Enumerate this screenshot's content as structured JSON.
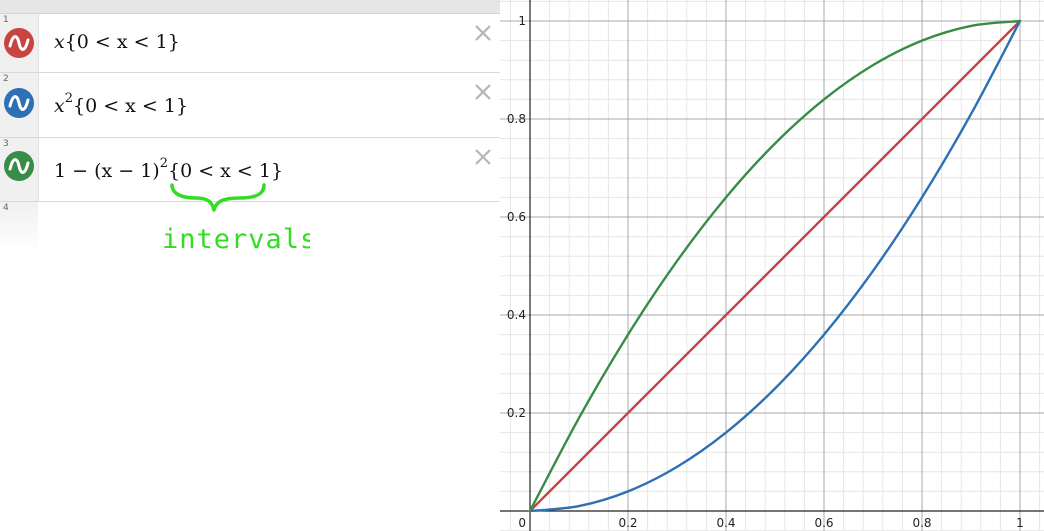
{
  "expressions": [
    {
      "index": "1",
      "color": "#c74440",
      "formula": "x",
      "restriction": "{0 < x < 1}"
    },
    {
      "index": "2",
      "color": "#2d70b3",
      "formula": "x",
      "exponent": "2",
      "restriction": "{0 < x < 1}"
    },
    {
      "index": "3",
      "color": "#388c46",
      "prefix": "1 − (x − 1)",
      "exponent": "2",
      "restriction": "{0 < x < 1}"
    },
    {
      "index": "4"
    }
  ],
  "annotation": {
    "text": "intervals",
    "color": "#33dd22"
  },
  "icons": {
    "wave": "wave-icon",
    "delete": "close-icon"
  },
  "chart_data": {
    "type": "line",
    "xlim": [
      0,
      1
    ],
    "ylim": [
      0,
      1
    ],
    "x_ticks": [
      "0",
      "0.2",
      "0.4",
      "0.6",
      "0.8",
      "1"
    ],
    "y_ticks": [
      "0.2",
      "0.4",
      "0.6",
      "0.8",
      "1"
    ],
    "grid": true,
    "series": [
      {
        "name": "x",
        "color": "#c74440",
        "x": [
          0,
          0.5,
          1
        ],
        "y": [
          0,
          0.5,
          1
        ]
      },
      {
        "name": "x^2",
        "color": "#2d70b3",
        "x": [
          0,
          0.1,
          0.2,
          0.3,
          0.4,
          0.5,
          0.6,
          0.7,
          0.8,
          0.9,
          1
        ],
        "y": [
          0,
          0.01,
          0.04,
          0.09,
          0.16,
          0.25,
          0.36,
          0.49,
          0.64,
          0.81,
          1
        ]
      },
      {
        "name": "1-(x-1)^2",
        "color": "#388c46",
        "x": [
          0,
          0.1,
          0.2,
          0.3,
          0.4,
          0.5,
          0.6,
          0.7,
          0.8,
          0.9,
          1
        ],
        "y": [
          0,
          0.19,
          0.36,
          0.51,
          0.64,
          0.75,
          0.84,
          0.91,
          0.96,
          0.99,
          1
        ]
      }
    ]
  }
}
